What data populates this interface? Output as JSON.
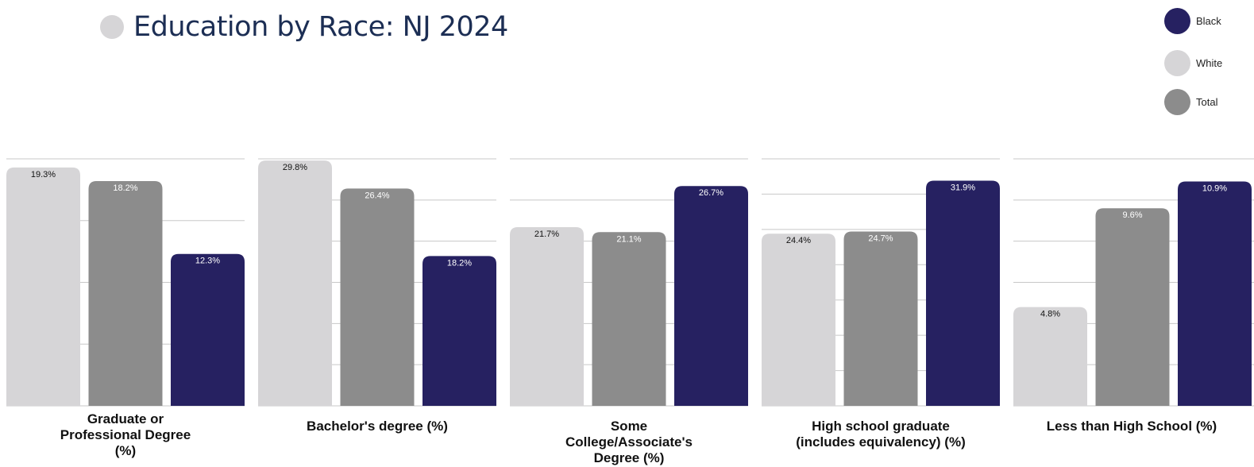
{
  "title": "Education by Race: NJ 2024",
  "colors": {
    "Black": "#262161",
    "White": "#d6d5d7",
    "Total": "#8c8c8c",
    "title": "#1c2e54",
    "grid": "#c8c8c8"
  },
  "legend": [
    {
      "label": "Black",
      "color_key": "Black"
    },
    {
      "label": "White",
      "color_key": "White"
    },
    {
      "label": "Total",
      "color_key": "Total"
    }
  ],
  "chart_data": {
    "type": "bar",
    "series_order": [
      "White",
      "Total",
      "Black"
    ],
    "panels": [
      {
        "label": "Graduate or Professional Degree (%)",
        "label_lines": [
          "Graduate or",
          "Professional Degree",
          "(%)"
        ],
        "values": {
          "White": 19.3,
          "Total": 18.2,
          "Black": 12.3
        },
        "value_labels": {
          "White": "19.3%",
          "Total": "18.2%",
          "Black": "12.3%"
        },
        "ylim": [
          0,
          20
        ]
      },
      {
        "label": "Bachelor's degree (%)",
        "label_lines": [
          "Bachelor's degree (%)"
        ],
        "values": {
          "White": 29.8,
          "Total": 26.4,
          "Black": 18.2
        },
        "value_labels": {
          "White": "29.8%",
          "Total": "26.4%",
          "Black": "18.2%"
        },
        "ylim": [
          0,
          30
        ]
      },
      {
        "label": "Some College/Associate's Degree (%)",
        "label_lines": [
          "Some",
          "College/Associate's",
          "Degree (%)"
        ],
        "values": {
          "White": 21.7,
          "Total": 21.1,
          "Black": 26.7
        },
        "value_labels": {
          "White": "21.7%",
          "Total": "21.1%",
          "Black": "26.7%"
        },
        "ylim": [
          0,
          30
        ]
      },
      {
        "label": "High school graduate (includes equivalency) (%)",
        "label_lines": [
          "High school graduate",
          "(includes equivalency) (%)"
        ],
        "values": {
          "White": 24.4,
          "Total": 24.7,
          "Black": 31.9
        },
        "value_labels": {
          "White": "24.4%",
          "Total": "24.7%",
          "Black": "31.9%"
        },
        "ylim": [
          0,
          35
        ]
      },
      {
        "label": "Less than High School (%)",
        "label_lines": [
          "Less than High School (%)"
        ],
        "values": {
          "White": 4.8,
          "Total": 9.6,
          "Black": 10.9
        },
        "value_labels": {
          "White": "4.8%",
          "Total": "9.6%",
          "Black": "10.9%"
        },
        "ylim": [
          0,
          12
        ]
      }
    ]
  }
}
